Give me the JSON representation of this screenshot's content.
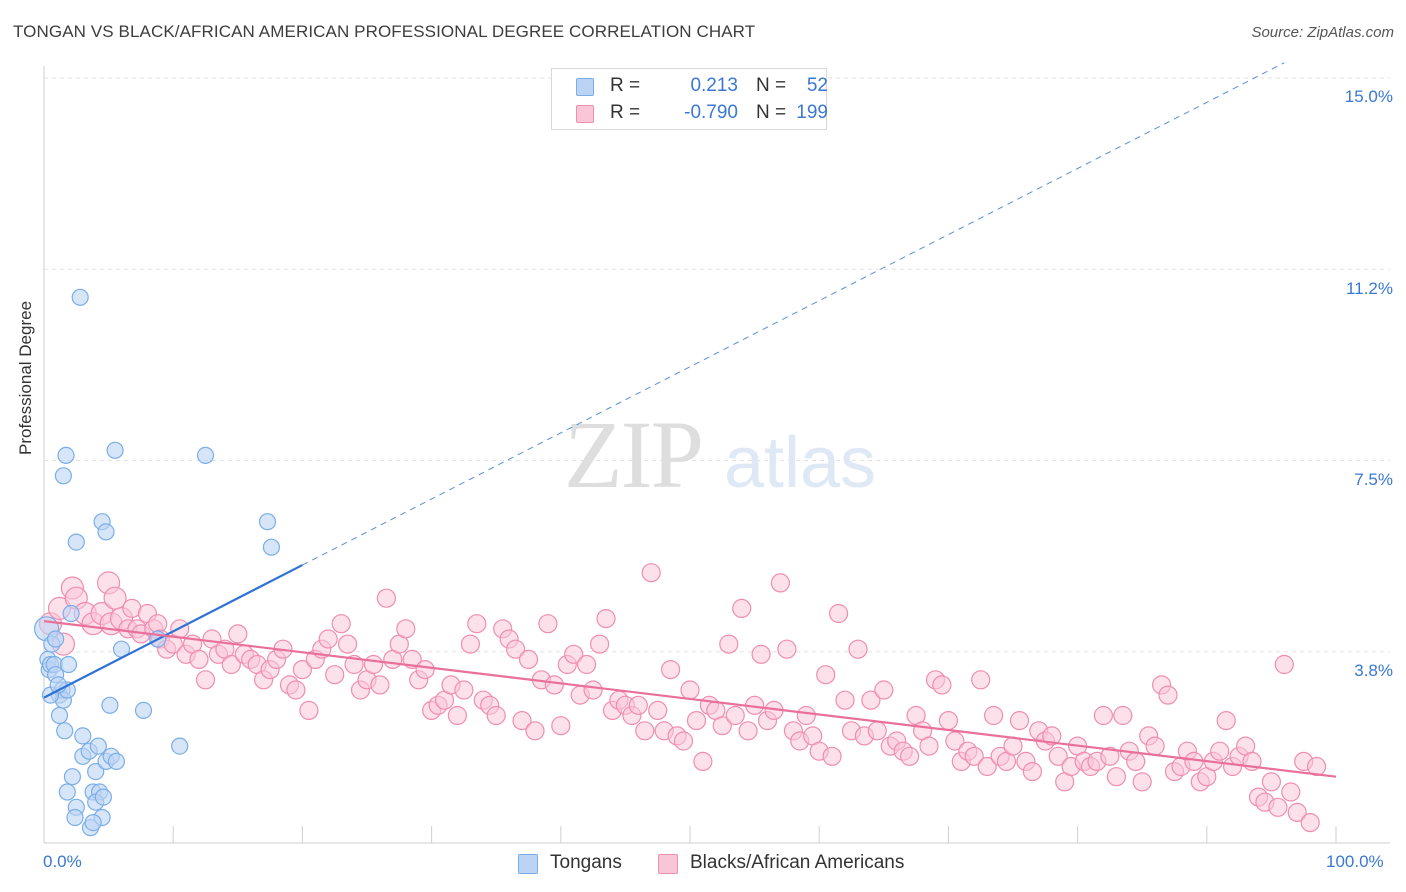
{
  "title": "TONGAN VS BLACK/AFRICAN AMERICAN PROFESSIONAL DEGREE CORRELATION CHART",
  "source": "Source: ZipAtlas.com",
  "watermark": {
    "zip": "ZIP",
    "atlas": "atlas"
  },
  "legend": {
    "rows": [
      {
        "r_label": "R =",
        "r_value": "0.213",
        "n_label": "N =",
        "n_value": "52",
        "color": "#7aaee8",
        "fill": "#bcd4f3"
      },
      {
        "r_label": "R =",
        "r_value": "-0.790",
        "n_label": "N =",
        "n_value": "199",
        "color": "#f08db0",
        "fill": "#f9c6d8"
      }
    ]
  },
  "bottom_legend": {
    "series1": "Tongans",
    "series2": "Blacks/African Americans"
  },
  "y_axis_label": "Professional Degree",
  "y_ticks": [
    "15.0%",
    "11.2%",
    "7.5%",
    "3.8%"
  ],
  "x_ticks": [
    "0.0%",
    "100.0%"
  ],
  "colors": {
    "blue_line": "#2f72d6",
    "pink_line": "#e8709b",
    "blue_point": "#7aaee8",
    "pink_point": "#f08db0",
    "grid": "#e2e2e2",
    "axis_text": "#3a78d4"
  },
  "chart_data": {
    "type": "scatter",
    "xlim": [
      0,
      100
    ],
    "ylim": [
      0,
      15.0
    ],
    "y_tick_values": [
      15.0,
      11.25,
      7.5,
      3.75
    ],
    "x_tick_values": [
      0,
      100
    ],
    "grid": true,
    "series": [
      {
        "name": "Tongans",
        "color": "#7aaee8",
        "trend": {
          "x": [
            0,
            20
          ],
          "y": [
            2.85,
            5.45
          ],
          "extended_to": [
            96,
            15.3
          ]
        },
        "points": [
          [
            0.2,
            4.2
          ],
          [
            0.3,
            3.6
          ],
          [
            0.4,
            3.4
          ],
          [
            0.5,
            3.5
          ],
          [
            0.8,
            3.5
          ],
          [
            0.9,
            3.3
          ],
          [
            0.6,
            3.9
          ],
          [
            0.9,
            4.0
          ],
          [
            1.2,
            2.9
          ],
          [
            1.4,
            3.0
          ],
          [
            1.5,
            2.8
          ],
          [
            1.2,
            2.5
          ],
          [
            1.6,
            2.2
          ],
          [
            1.8,
            3.0
          ],
          [
            1.9,
            3.5
          ],
          [
            1.5,
            7.2
          ],
          [
            1.7,
            7.6
          ],
          [
            2.1,
            4.5
          ],
          [
            2.5,
            5.9
          ],
          [
            2.8,
            10.7
          ],
          [
            3.0,
            2.1
          ],
          [
            3.0,
            1.7
          ],
          [
            3.5,
            1.8
          ],
          [
            3.8,
            1.0
          ],
          [
            4.0,
            1.4
          ],
          [
            4.3,
            1.0
          ],
          [
            4.0,
            0.8
          ],
          [
            4.5,
            0.5
          ],
          [
            2.5,
            0.7
          ],
          [
            2.2,
            1.3
          ],
          [
            1.8,
            1.0
          ],
          [
            4.6,
            0.9
          ],
          [
            3.6,
            0.3
          ],
          [
            3.8,
            0.4
          ],
          [
            2.4,
            0.5
          ],
          [
            4.2,
            1.9
          ],
          [
            4.8,
            1.6
          ],
          [
            5.2,
            1.7
          ],
          [
            5.6,
            1.6
          ],
          [
            4.5,
            6.3
          ],
          [
            4.8,
            6.1
          ],
          [
            5.5,
            7.7
          ],
          [
            6.0,
            3.8
          ],
          [
            5.1,
            2.7
          ],
          [
            7.7,
            2.6
          ],
          [
            8.8,
            4.0
          ],
          [
            10.5,
            1.9
          ],
          [
            12.5,
            7.6
          ],
          [
            17.3,
            6.3
          ],
          [
            17.6,
            5.8
          ],
          [
            0.5,
            2.9
          ],
          [
            1.1,
            3.1
          ]
        ]
      },
      {
        "name": "Blacks/African Americans",
        "color": "#f08db0",
        "trend": {
          "x": [
            0,
            100
          ],
          "y": [
            4.35,
            1.3
          ]
        },
        "points": [
          [
            0.5,
            4.3
          ],
          [
            1.2,
            4.6
          ],
          [
            1.5,
            3.9
          ],
          [
            2.2,
            5.0
          ],
          [
            2.5,
            4.8
          ],
          [
            3.2,
            4.5
          ],
          [
            3.8,
            4.3
          ],
          [
            4.5,
            4.5
          ],
          [
            5.0,
            5.1
          ],
          [
            5.2,
            4.3
          ],
          [
            5.5,
            4.8
          ],
          [
            6.0,
            4.4
          ],
          [
            6.5,
            4.2
          ],
          [
            6.8,
            4.6
          ],
          [
            7.2,
            4.2
          ],
          [
            7.5,
            4.1
          ],
          [
            8.0,
            4.5
          ],
          [
            8.5,
            4.2
          ],
          [
            8.8,
            4.3
          ],
          [
            9.0,
            4.0
          ],
          [
            9.5,
            3.8
          ],
          [
            10.0,
            3.9
          ],
          [
            10.5,
            4.2
          ],
          [
            11.0,
            3.7
          ],
          [
            11.5,
            3.9
          ],
          [
            12.0,
            3.6
          ],
          [
            12.5,
            3.2
          ],
          [
            13.0,
            4.0
          ],
          [
            13.5,
            3.7
          ],
          [
            14.0,
            3.8
          ],
          [
            14.5,
            3.5
          ],
          [
            15.0,
            4.1
          ],
          [
            15.5,
            3.7
          ],
          [
            16.0,
            3.6
          ],
          [
            16.5,
            3.5
          ],
          [
            17.0,
            3.2
          ],
          [
            17.5,
            3.4
          ],
          [
            18.0,
            3.6
          ],
          [
            18.5,
            3.8
          ],
          [
            19.0,
            3.1
          ],
          [
            19.5,
            3.0
          ],
          [
            20.0,
            3.4
          ],
          [
            20.5,
            2.6
          ],
          [
            21.0,
            3.6
          ],
          [
            21.5,
            3.8
          ],
          [
            22.0,
            4.0
          ],
          [
            22.5,
            3.3
          ],
          [
            23.0,
            4.3
          ],
          [
            23.5,
            3.9
          ],
          [
            24.0,
            3.5
          ],
          [
            24.5,
            3.0
          ],
          [
            25.0,
            3.2
          ],
          [
            25.5,
            3.5
          ],
          [
            26.0,
            3.1
          ],
          [
            26.5,
            4.8
          ],
          [
            27.0,
            3.6
          ],
          [
            27.5,
            3.9
          ],
          [
            28.0,
            4.2
          ],
          [
            28.5,
            3.6
          ],
          [
            29.0,
            3.2
          ],
          [
            29.5,
            3.4
          ],
          [
            30.0,
            2.6
          ],
          [
            30.5,
            2.7
          ],
          [
            31.0,
            2.8
          ],
          [
            31.5,
            3.1
          ],
          [
            32.0,
            2.5
          ],
          [
            32.5,
            3.0
          ],
          [
            33.0,
            3.9
          ],
          [
            33.5,
            4.3
          ],
          [
            34.0,
            2.8
          ],
          [
            34.5,
            2.7
          ],
          [
            35.0,
            2.5
          ],
          [
            35.5,
            4.2
          ],
          [
            36.0,
            4.0
          ],
          [
            36.5,
            3.8
          ],
          [
            37.0,
            2.4
          ],
          [
            37.5,
            3.6
          ],
          [
            38.0,
            2.2
          ],
          [
            38.5,
            3.2
          ],
          [
            39.0,
            4.3
          ],
          [
            39.5,
            3.1
          ],
          [
            40.0,
            2.3
          ],
          [
            40.5,
            3.5
          ],
          [
            41.0,
            3.7
          ],
          [
            41.5,
            2.9
          ],
          [
            42.0,
            3.5
          ],
          [
            42.5,
            3.0
          ],
          [
            43.0,
            3.9
          ],
          [
            43.5,
            4.4
          ],
          [
            44.0,
            2.6
          ],
          [
            44.5,
            2.8
          ],
          [
            45.0,
            2.7
          ],
          [
            45.5,
            2.5
          ],
          [
            46.0,
            2.7
          ],
          [
            46.5,
            2.2
          ],
          [
            47.0,
            5.3
          ],
          [
            47.5,
            2.6
          ],
          [
            48.0,
            2.2
          ],
          [
            48.5,
            3.4
          ],
          [
            49.0,
            2.1
          ],
          [
            49.5,
            2.0
          ],
          [
            50.0,
            3.0
          ],
          [
            50.5,
            2.4
          ],
          [
            51.0,
            1.6
          ],
          [
            51.5,
            2.7
          ],
          [
            52.0,
            2.6
          ],
          [
            52.5,
            2.3
          ],
          [
            53.0,
            3.9
          ],
          [
            53.5,
            2.5
          ],
          [
            54.0,
            4.6
          ],
          [
            54.5,
            2.2
          ],
          [
            55.0,
            2.7
          ],
          [
            55.5,
            3.7
          ],
          [
            56.0,
            2.4
          ],
          [
            56.5,
            2.6
          ],
          [
            57.0,
            5.1
          ],
          [
            57.5,
            3.8
          ],
          [
            58.0,
            2.2
          ],
          [
            58.5,
            2.0
          ],
          [
            59.0,
            2.5
          ],
          [
            59.5,
            2.1
          ],
          [
            60.0,
            1.8
          ],
          [
            60.5,
            3.3
          ],
          [
            61.0,
            1.7
          ],
          [
            61.5,
            4.5
          ],
          [
            62.0,
            2.8
          ],
          [
            62.5,
            2.2
          ],
          [
            63.0,
            3.8
          ],
          [
            63.5,
            2.1
          ],
          [
            64.0,
            2.8
          ],
          [
            64.5,
            2.2
          ],
          [
            65.0,
            3.0
          ],
          [
            65.5,
            1.9
          ],
          [
            66.0,
            2.0
          ],
          [
            66.5,
            1.8
          ],
          [
            67.0,
            1.7
          ],
          [
            67.5,
            2.5
          ],
          [
            68.0,
            2.2
          ],
          [
            68.5,
            1.9
          ],
          [
            69.0,
            3.2
          ],
          [
            69.5,
            3.1
          ],
          [
            70.0,
            2.4
          ],
          [
            70.5,
            2.0
          ],
          [
            71.0,
            1.6
          ],
          [
            71.5,
            1.8
          ],
          [
            72.0,
            1.7
          ],
          [
            72.5,
            3.2
          ],
          [
            73.0,
            1.5
          ],
          [
            73.5,
            2.5
          ],
          [
            74.0,
            1.7
          ],
          [
            74.5,
            1.6
          ],
          [
            75.0,
            1.9
          ],
          [
            75.5,
            2.4
          ],
          [
            76.0,
            1.6
          ],
          [
            76.5,
            1.4
          ],
          [
            77.0,
            2.2
          ],
          [
            77.5,
            2.0
          ],
          [
            78.0,
            2.1
          ],
          [
            78.5,
            1.7
          ],
          [
            79.0,
            1.2
          ],
          [
            79.5,
            1.5
          ],
          [
            80.0,
            1.9
          ],
          [
            80.5,
            1.6
          ],
          [
            81.0,
            1.5
          ],
          [
            81.5,
            1.6
          ],
          [
            82.0,
            2.5
          ],
          [
            82.5,
            1.7
          ],
          [
            83.0,
            1.3
          ],
          [
            83.5,
            2.5
          ],
          [
            84.0,
            1.8
          ],
          [
            84.5,
            1.6
          ],
          [
            85.0,
            1.2
          ],
          [
            85.5,
            2.1
          ],
          [
            86.0,
            1.9
          ],
          [
            86.5,
            3.1
          ],
          [
            87.0,
            2.9
          ],
          [
            87.5,
            1.4
          ],
          [
            88.0,
            1.5
          ],
          [
            88.5,
            1.8
          ],
          [
            89.0,
            1.6
          ],
          [
            89.5,
            1.2
          ],
          [
            90.0,
            1.3
          ],
          [
            90.5,
            1.6
          ],
          [
            91.0,
            1.8
          ],
          [
            91.5,
            2.4
          ],
          [
            92.0,
            1.5
          ],
          [
            92.5,
            1.7
          ],
          [
            93.0,
            1.9
          ],
          [
            93.5,
            1.6
          ],
          [
            94.0,
            0.9
          ],
          [
            94.5,
            0.8
          ],
          [
            95.0,
            1.2
          ],
          [
            95.5,
            0.7
          ],
          [
            96.0,
            3.5
          ],
          [
            96.5,
            1.0
          ],
          [
            97.0,
            0.6
          ],
          [
            97.5,
            1.6
          ],
          [
            98.0,
            0.4
          ],
          [
            98.5,
            1.5
          ]
        ]
      }
    ]
  }
}
